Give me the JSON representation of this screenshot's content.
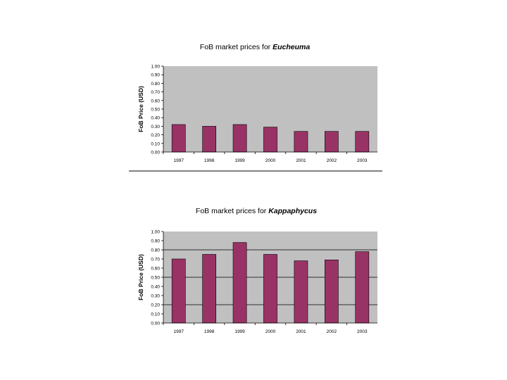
{
  "chart_data": [
    {
      "type": "bar",
      "title_prefix": "FoB market prices for ",
      "title_species": "Eucheuma",
      "ylabel": "FoB Price (USD)",
      "xlabel": "",
      "categories": [
        "1997",
        "1998",
        "1999",
        "2000",
        "2001",
        "2002",
        "2003"
      ],
      "values": [
        0.32,
        0.3,
        0.32,
        0.29,
        0.24,
        0.24,
        0.24
      ],
      "ylim": [
        0,
        1.0
      ],
      "yticks": [
        "0.00",
        "0.10",
        "0.20",
        "0.30",
        "0.40",
        "0.50",
        "0.60",
        "0.70",
        "0.80",
        "0.90",
        "1.00"
      ],
      "grid": false,
      "colors": {
        "bar": "#993366",
        "plot_bg": "#c0c0c0"
      }
    },
    {
      "type": "bar",
      "title_prefix": "FoB market prices for ",
      "title_species": "Kappaphycus",
      "ylabel": "FoB Price (USD)",
      "xlabel": "",
      "categories": [
        "1997",
        "1998",
        "1999",
        "2000",
        "2001",
        "2002",
        "2003"
      ],
      "values": [
        0.7,
        0.75,
        0.88,
        0.75,
        0.68,
        0.69,
        0.78
      ],
      "ylim": [
        0,
        1.0
      ],
      "yticks": [
        "0.00",
        "0.10",
        "0.20",
        "0.30",
        "0.40",
        "0.50",
        "0.60",
        "0.70",
        "0.80",
        "0.90",
        "1.00"
      ],
      "grid": true,
      "grid_values": [
        0.2,
        0.5,
        0.8
      ],
      "colors": {
        "bar": "#993366",
        "plot_bg": "#c0c0c0"
      }
    }
  ]
}
